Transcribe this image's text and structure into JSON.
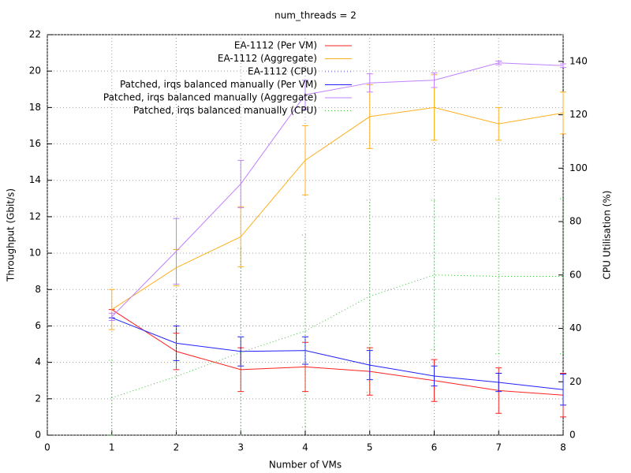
{
  "chart_data": {
    "type": "line",
    "title": "num_threads = 2",
    "xlabel": "Number of VMs",
    "ylabel": "Throughput (Gbit/s)",
    "y2label": "CPU Utilisation (%)",
    "x": [
      1,
      2,
      3,
      4,
      5,
      6,
      7,
      8
    ],
    "xlim": [
      0,
      8
    ],
    "xticks": [
      0,
      1,
      2,
      3,
      4,
      5,
      6,
      7,
      8
    ],
    "ylim": [
      0,
      22
    ],
    "yticks": [
      0,
      2,
      4,
      6,
      8,
      10,
      12,
      14,
      16,
      18,
      20,
      22
    ],
    "y2lim": [
      0,
      150
    ],
    "y2ticks": [
      0,
      20,
      40,
      60,
      80,
      100,
      120,
      140
    ],
    "grid": true,
    "legend": "top-right",
    "series": [
      {
        "name": "EA-1112 (Per VM)",
        "color": "#ff2020",
        "style": "solid",
        "values": [
          6.9,
          4.6,
          3.6,
          3.75,
          3.5,
          3.0,
          2.45,
          2.2
        ],
        "errors": [
          0,
          1.0,
          1.2,
          1.35,
          1.3,
          1.15,
          1.25,
          1.2
        ]
      },
      {
        "name": "EA-1112 (Aggregate)",
        "color": "#ffb020",
        "style": "solid",
        "values": [
          6.9,
          9.2,
          10.9,
          15.1,
          17.5,
          18.0,
          17.1,
          17.7
        ],
        "errors": [
          1.1,
          1.0,
          1.65,
          1.9,
          1.75,
          1.8,
          0.9,
          1.15
        ]
      },
      {
        "name": "EA-1112 (CPU)",
        "color": "#8080ff",
        "style": "dotted",
        "axis": "y2",
        "values": [
          null,
          null,
          null,
          null,
          null,
          null,
          null,
          null
        ],
        "errors": [
          null,
          null,
          null,
          null,
          null,
          null,
          null,
          null
        ]
      },
      {
        "name": "Patched, irqs balanced manually (Per VM)",
        "color": "#2020ff",
        "style": "solid",
        "values": [
          6.45,
          5.05,
          4.6,
          4.65,
          3.85,
          3.25,
          2.9,
          2.5
        ],
        "errors": [
          0,
          0.95,
          0.8,
          0.75,
          0.8,
          0.55,
          0.5,
          0.85
        ]
      },
      {
        "name": "Patched, irqs balanced manually (Aggregate)",
        "color": "#c080ff",
        "style": "solid",
        "values": [
          6.5,
          10.1,
          13.8,
          18.7,
          19.35,
          19.5,
          20.45,
          20.3
        ],
        "errors": [
          0.2,
          1.8,
          1.3,
          0.8,
          0.5,
          0.4,
          0.1,
          0.1
        ]
      },
      {
        "name": "Patched, irqs balanced manually (CPU)",
        "color": "#40c040",
        "style": "dotted",
        "axis": "y2",
        "values": [
          14,
          22,
          31,
          39,
          52,
          60,
          59.5,
          59.5
        ],
        "errors": [
          14,
          30,
          39,
          36,
          36,
          28,
          29,
          29
        ]
      }
    ]
  }
}
